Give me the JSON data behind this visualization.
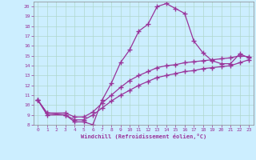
{
  "title": "",
  "xlabel": "Windchill (Refroidissement éolien,°C)",
  "ylabel": "",
  "bg_color": "#cceeff",
  "plot_bg_color": "#cceeff",
  "line_color": "#993399",
  "grid_color": "#b0d8cc",
  "spine_color": "#888888",
  "tick_color": "#993399",
  "xlim": [
    -0.5,
    23.5
  ],
  "ylim": [
    8,
    20.5
  ],
  "xticks": [
    0,
    1,
    2,
    3,
    4,
    5,
    6,
    7,
    8,
    9,
    10,
    11,
    12,
    13,
    14,
    15,
    16,
    17,
    18,
    19,
    20,
    21,
    22,
    23
  ],
  "yticks": [
    8,
    9,
    10,
    11,
    12,
    13,
    14,
    15,
    16,
    17,
    18,
    19,
    20
  ],
  "line1_x": [
    0,
    1,
    3,
    4,
    5,
    6,
    7,
    8,
    9,
    10,
    11,
    12,
    13,
    14,
    15,
    16,
    17,
    18,
    19,
    20,
    21,
    22,
    23
  ],
  "line1_y": [
    10.5,
    9.2,
    9.0,
    8.3,
    8.3,
    8.0,
    10.5,
    12.2,
    14.3,
    15.6,
    17.5,
    18.2,
    20.0,
    20.3,
    19.8,
    19.3,
    16.5,
    15.3,
    14.5,
    14.2,
    14.2,
    15.2,
    14.8
  ],
  "line2_x": [
    0,
    1,
    3,
    4,
    5,
    6,
    7,
    8,
    9,
    10,
    11,
    12,
    13,
    14,
    15,
    16,
    17,
    18,
    19,
    20,
    21,
    22,
    23
  ],
  "line2_y": [
    10.5,
    9.2,
    9.2,
    8.8,
    8.8,
    9.3,
    10.2,
    11.0,
    11.8,
    12.5,
    13.0,
    13.4,
    13.8,
    14.0,
    14.1,
    14.3,
    14.4,
    14.5,
    14.6,
    14.7,
    14.8,
    15.0,
    14.9
  ],
  "line3_x": [
    0,
    1,
    3,
    4,
    5,
    6,
    7,
    8,
    9,
    10,
    11,
    12,
    13,
    14,
    15,
    16,
    17,
    18,
    19,
    20,
    21,
    22,
    23
  ],
  "line3_y": [
    10.5,
    9.0,
    9.0,
    8.5,
    8.5,
    9.0,
    9.7,
    10.4,
    11.0,
    11.5,
    12.0,
    12.4,
    12.8,
    13.0,
    13.2,
    13.4,
    13.5,
    13.7,
    13.8,
    13.9,
    14.0,
    14.3,
    14.6
  ],
  "marker": "+",
  "markersize": 4,
  "markeredgewidth": 1.0,
  "linewidth": 0.9
}
